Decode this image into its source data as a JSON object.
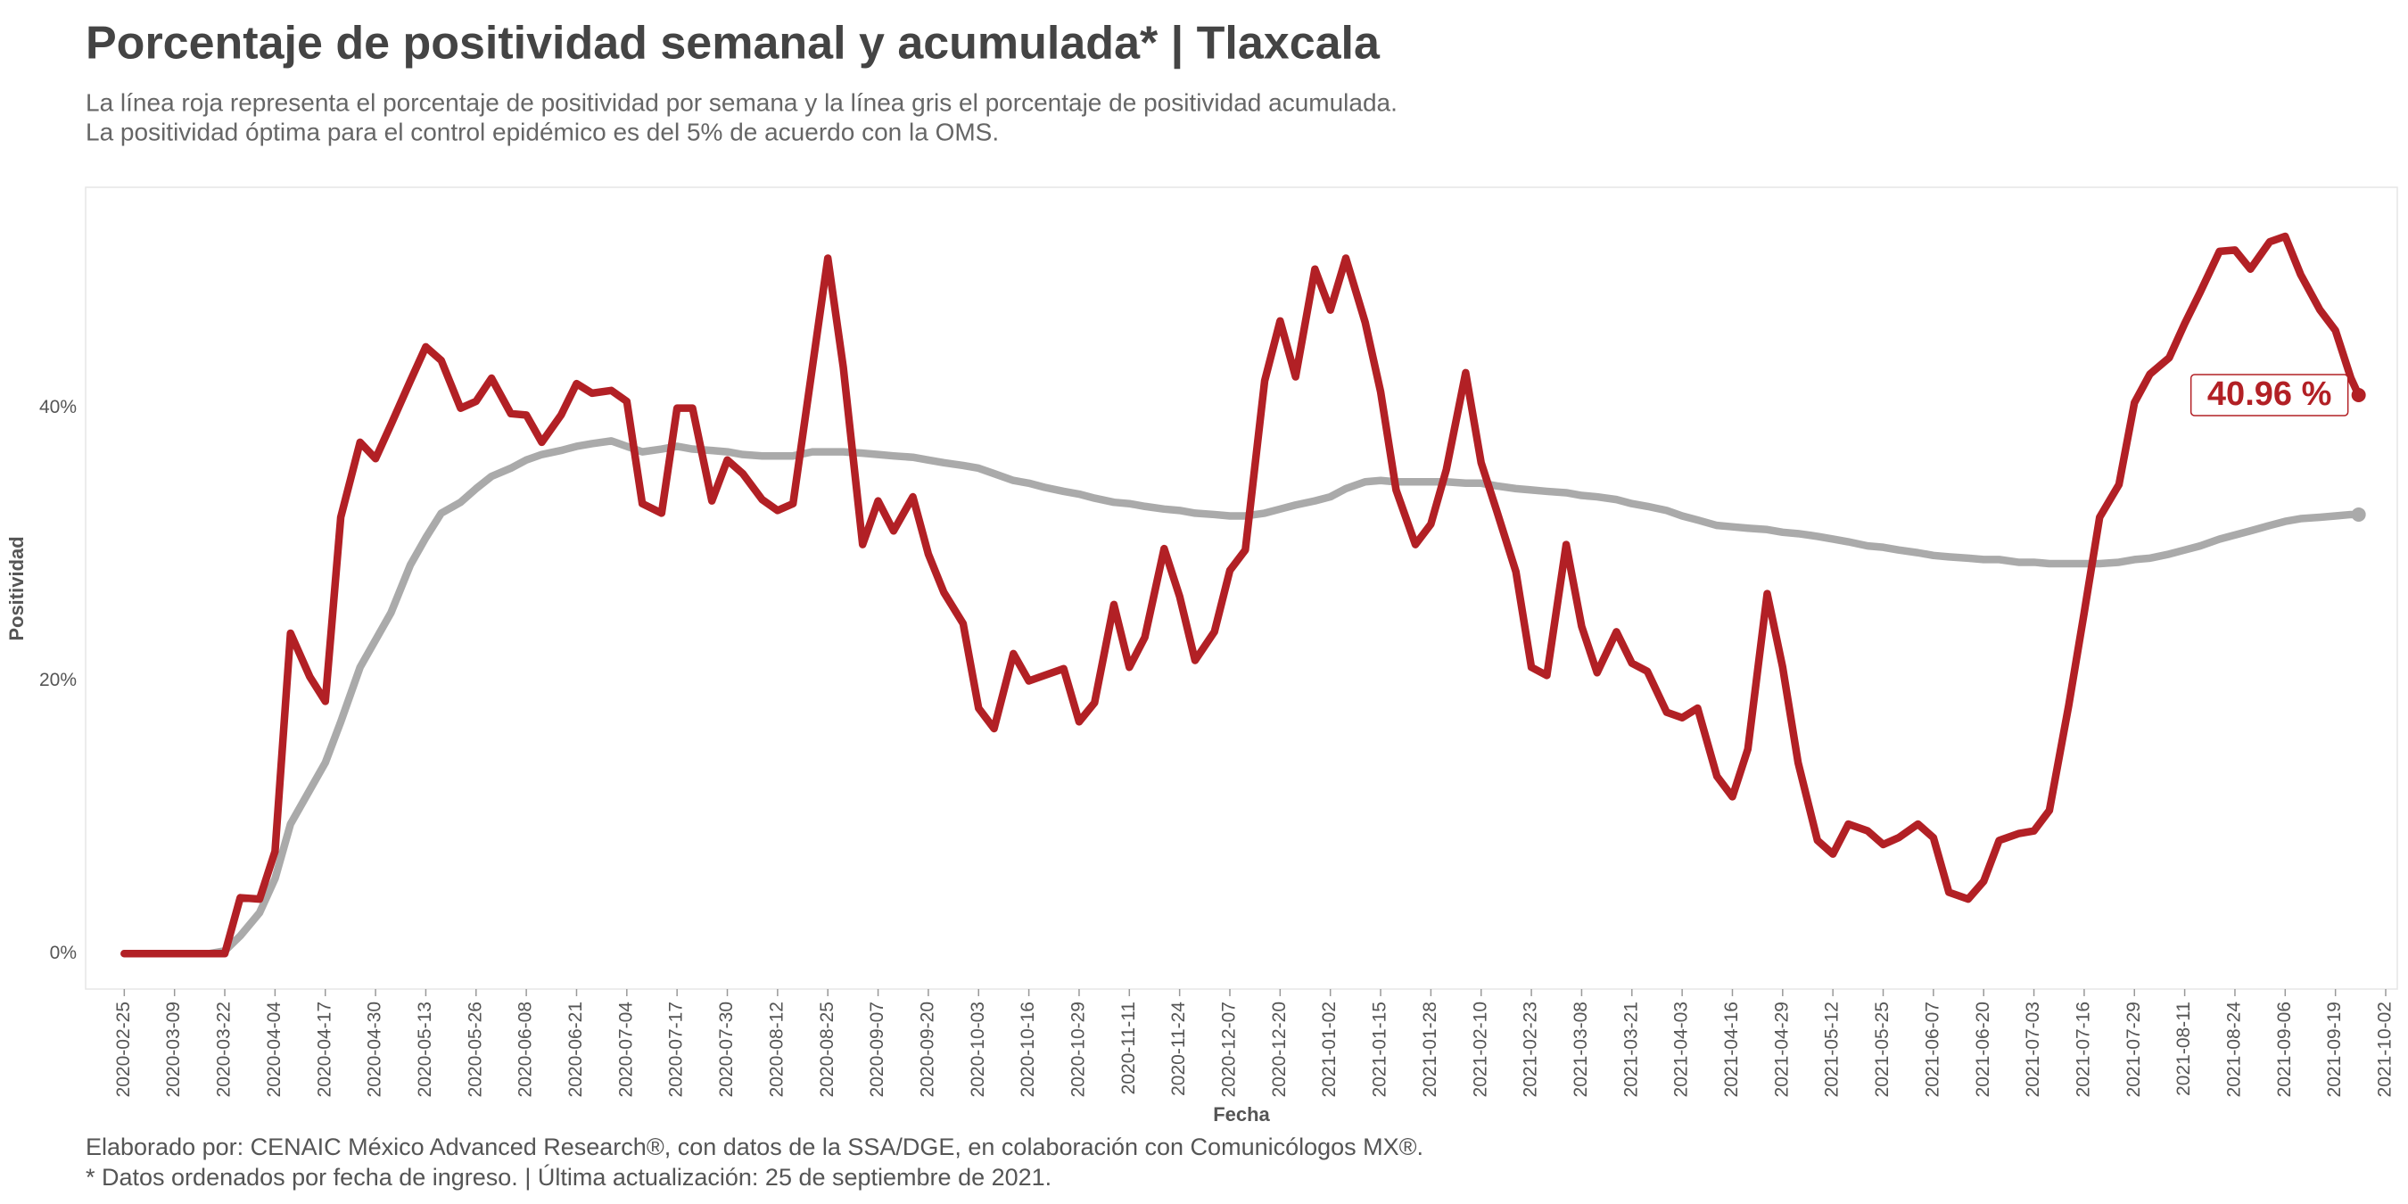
{
  "chart_data": {
    "type": "line",
    "title": "Porcentaje de positividad semanal y acumulada* | Tlaxcala",
    "subtitle": [
      "La línea roja representa el porcentaje de positividad por semana y la línea gris el porcentaje de positividad acumulada.",
      "La positividad óptima para el control epidémico es del 5% de acuerdo con la OMS."
    ],
    "caption": [
      "Elaborado por: CENAIC México Advanced Research®, con datos de la SSA/DGE, en colaboración con Comunicólogos MX®.",
      "* Datos ordenados por fecha de ingreso. | Última actualización: 25 de septiembre de 2021."
    ],
    "x_label": "Fecha",
    "y_label": "Positividad",
    "grid": false,
    "xlim": [
      "2020-02-15",
      "2021-10-05"
    ],
    "ylim": [
      -2.6,
      56.2
    ],
    "yticks": [
      {
        "value": 0,
        "label": "0%"
      },
      {
        "value": 20,
        "label": "20%"
      },
      {
        "value": 40,
        "label": "40%"
      }
    ],
    "xticks": [
      "2020-02-25",
      "2020-03-09",
      "2020-03-22",
      "2020-04-04",
      "2020-04-17",
      "2020-04-30",
      "2020-05-13",
      "2020-05-26",
      "2020-06-08",
      "2020-06-21",
      "2020-07-04",
      "2020-07-17",
      "2020-07-30",
      "2020-08-12",
      "2020-08-25",
      "2020-09-07",
      "2020-09-20",
      "2020-10-03",
      "2020-10-16",
      "2020-10-29",
      "2020-11-11",
      "2020-11-24",
      "2020-12-07",
      "2020-12-20",
      "2021-01-02",
      "2021-01-15",
      "2021-01-28",
      "2021-02-10",
      "2021-02-23",
      "2021-03-08",
      "2021-03-21",
      "2021-04-03",
      "2021-04-16",
      "2021-04-29",
      "2021-05-12",
      "2021-05-25",
      "2021-06-07",
      "2021-06-20",
      "2021-07-03",
      "2021-07-16",
      "2021-07-29",
      "2021-08-11",
      "2021-08-24",
      "2021-09-06",
      "2021-09-19",
      "2021-10-02"
    ],
    "x": [
      "2020-02-25",
      "2020-02-29",
      "2020-03-05",
      "2020-03-09",
      "2020-03-13",
      "2020-03-18",
      "2020-03-22",
      "2020-03-26",
      "2020-03-31",
      "2020-04-04",
      "2020-04-08",
      "2020-04-13",
      "2020-04-17",
      "2020-04-21",
      "2020-04-26",
      "2020-04-30",
      "2020-05-04",
      "2020-05-09",
      "2020-05-13",
      "2020-05-17",
      "2020-05-22",
      "2020-05-26",
      "2020-05-30",
      "2020-06-04",
      "2020-06-08",
      "2020-06-12",
      "2020-06-17",
      "2020-06-21",
      "2020-06-25",
      "2020-06-30",
      "2020-07-04",
      "2020-07-08",
      "2020-07-13",
      "2020-07-17",
      "2020-07-21",
      "2020-07-26",
      "2020-07-30",
      "2020-08-03",
      "2020-08-08",
      "2020-08-12",
      "2020-08-16",
      "2020-08-21",
      "2020-08-25",
      "2020-08-29",
      "2020-09-03",
      "2020-09-07",
      "2020-09-11",
      "2020-09-16",
      "2020-09-20",
      "2020-09-24",
      "2020-09-29",
      "2020-10-03",
      "2020-10-07",
      "2020-10-12",
      "2020-10-16",
      "2020-10-20",
      "2020-10-25",
      "2020-10-29",
      "2020-11-02",
      "2020-11-07",
      "2020-11-11",
      "2020-11-15",
      "2020-11-20",
      "2020-11-24",
      "2020-11-28",
      "2020-12-03",
      "2020-12-07",
      "2020-12-11",
      "2020-12-16",
      "2020-12-20",
      "2020-12-24",
      "2020-12-29",
      "2021-01-02",
      "2021-01-06",
      "2021-01-11",
      "2021-01-15",
      "2021-01-19",
      "2021-01-24",
      "2021-01-28",
      "2021-02-01",
      "2021-02-06",
      "2021-02-10",
      "2021-02-14",
      "2021-02-19",
      "2021-02-23",
      "2021-02-27",
      "2021-03-04",
      "2021-03-08",
      "2021-03-12",
      "2021-03-17",
      "2021-03-21",
      "2021-03-25",
      "2021-03-30",
      "2021-04-03",
      "2021-04-07",
      "2021-04-12",
      "2021-04-16",
      "2021-04-20",
      "2021-04-25",
      "2021-04-29",
      "2021-05-03",
      "2021-05-08",
      "2021-05-12",
      "2021-05-16",
      "2021-05-21",
      "2021-05-25",
      "2021-05-29",
      "2021-06-03",
      "2021-06-07",
      "2021-06-11",
      "2021-06-16",
      "2021-06-20",
      "2021-06-24",
      "2021-06-29",
      "2021-07-03",
      "2021-07-07",
      "2021-07-12",
      "2021-07-16",
      "2021-07-20",
      "2021-07-25",
      "2021-07-29",
      "2021-08-02",
      "2021-08-07",
      "2021-08-11",
      "2021-08-15",
      "2021-08-20",
      "2021-08-24",
      "2021-08-28",
      "2021-09-02",
      "2021-09-06",
      "2021-09-10",
      "2021-09-15",
      "2021-09-19",
      "2021-09-23",
      "2021-09-25"
    ],
    "series": [
      {
        "color": "#b22025",
        "end_label": "40.96 %",
        "values": [
          0,
          0,
          0,
          0,
          0,
          0,
          0,
          4.1,
          4,
          7.5,
          23.5,
          20.3,
          18.5,
          32,
          37.5,
          36.3,
          38.8,
          42,
          44.5,
          43.5,
          40,
          40.5,
          42.2,
          39.6,
          39.5,
          37.5,
          39.5,
          41.8,
          41.1,
          41.3,
          40.5,
          33,
          32.3,
          40,
          40,
          33.2,
          36.2,
          35.2,
          33.3,
          32.5,
          33,
          43,
          51,
          43,
          30,
          33.2,
          31,
          33.5,
          29.3,
          26.5,
          24.2,
          18,
          16.5,
          22,
          20,
          20.4,
          20.9,
          17,
          18.4,
          25.6,
          21,
          23.2,
          29.7,
          26.2,
          21.5,
          23.6,
          28.1,
          29.6,
          42,
          46.4,
          42.3,
          50.2,
          47.2,
          51,
          46.3,
          41.2,
          34,
          30,
          31.5,
          35.5,
          42.6,
          36,
          32.5,
          28,
          21,
          20.4,
          30,
          24,
          20.6,
          23.6,
          21.3,
          20.7,
          17.7,
          17.3,
          18,
          13,
          11.5,
          15,
          26.4,
          21,
          14,
          8.3,
          7.3,
          9.5,
          9,
          8,
          8.5,
          9.5,
          8.5,
          4.5,
          4,
          5.3,
          8.3,
          8.8,
          9,
          10.5,
          18.2,
          25,
          32,
          34.4,
          40.4,
          42.5,
          43.7,
          46.2,
          48.5,
          51.5,
          51.6,
          50.2,
          52.2,
          52.6,
          49.8,
          47.2,
          45.7,
          42.2,
          40.96
        ]
      },
      {
        "color": "#aaaaaa",
        "values": [
          0,
          0,
          0,
          0,
          0,
          0,
          0.2,
          1.3,
          3,
          5.5,
          9.5,
          12,
          14,
          17,
          21,
          23,
          25,
          28.5,
          30.5,
          32.3,
          33.1,
          34.1,
          35,
          35.6,
          36.2,
          36.6,
          36.9,
          37.2,
          37.4,
          37.6,
          37.2,
          36.8,
          37,
          37.2,
          37,
          36.9,
          36.8,
          36.6,
          36.5,
          36.5,
          36.5,
          36.8,
          36.8,
          36.8,
          36.7,
          36.6,
          36.5,
          36.4,
          36.2,
          36,
          35.8,
          35.6,
          35.2,
          34.7,
          34.5,
          34.2,
          33.9,
          33.7,
          33.4,
          33.1,
          33,
          32.8,
          32.6,
          32.5,
          32.3,
          32.2,
          32.1,
          32.1,
          32.3,
          32.6,
          32.9,
          33.2,
          33.5,
          34.1,
          34.6,
          34.7,
          34.6,
          34.6,
          34.6,
          34.6,
          34.5,
          34.5,
          34.3,
          34.1,
          34,
          33.9,
          33.8,
          33.6,
          33.5,
          33.3,
          33,
          32.8,
          32.5,
          32.1,
          31.8,
          31.4,
          31.3,
          31.2,
          31.1,
          30.9,
          30.8,
          30.6,
          30.4,
          30.2,
          29.9,
          29.8,
          29.6,
          29.4,
          29.2,
          29.1,
          29,
          28.9,
          28.9,
          28.7,
          28.7,
          28.6,
          28.6,
          28.6,
          28.6,
          28.7,
          28.9,
          29,
          29.3,
          29.6,
          29.9,
          30.4,
          30.7,
          31,
          31.4,
          31.7,
          31.9,
          32,
          32.1,
          32.2,
          32.2
        ]
      }
    ]
  }
}
